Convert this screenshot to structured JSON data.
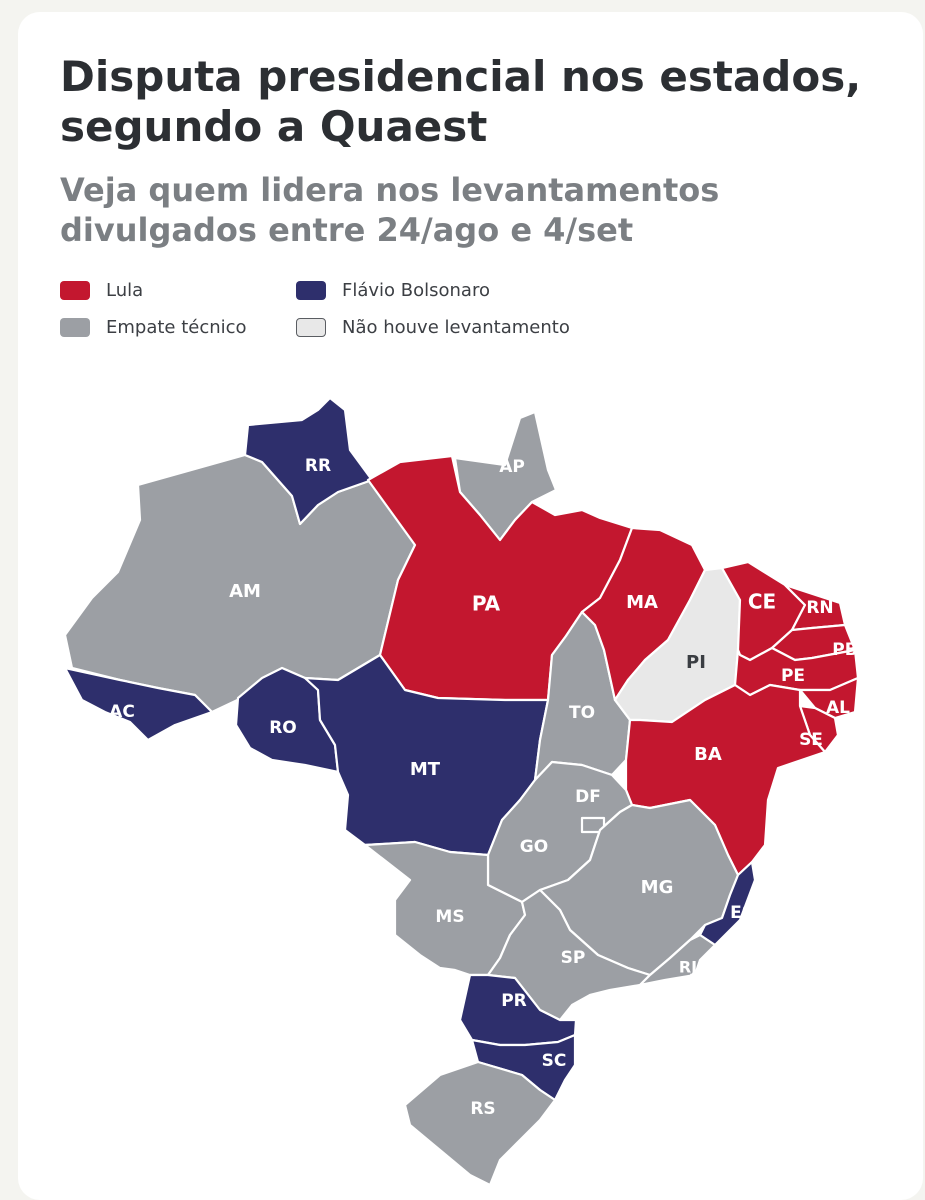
{
  "header": {
    "title": "Disputa presidencial nos estados, segundo a Quaest",
    "subtitle": "Veja quem lidera nos levantamentos divulgados entre 24/ago e 4/set"
  },
  "legend": {
    "lula": "Lula",
    "flavio": "Flávio Bolsonaro",
    "empate": "Empate técnico",
    "sem": "Não houve levantamento"
  },
  "colors": {
    "lula": "#c3172f",
    "flavio": "#2e2f6c",
    "empate": "#9c9fa4",
    "sem": "#e8e8e8",
    "sem_border": "#5a5d62"
  },
  "states": {
    "RR": {
      "label": "RR",
      "leader": "flavio"
    },
    "AP": {
      "label": "AP",
      "leader": "empate"
    },
    "AM": {
      "label": "AM",
      "leader": "empate"
    },
    "PA": {
      "label": "PA",
      "leader": "lula"
    },
    "MA": {
      "label": "MA",
      "leader": "lula"
    },
    "CE": {
      "label": "CE",
      "leader": "lula"
    },
    "RN": {
      "label": "RN",
      "leader": "lula"
    },
    "PB": {
      "label": "PB",
      "leader": "lula"
    },
    "PE": {
      "label": "PE",
      "leader": "lula"
    },
    "AL": {
      "label": "AL",
      "leader": "lula"
    },
    "SE": {
      "label": "SE",
      "leader": "lula"
    },
    "PI": {
      "label": "PI",
      "leader": "sem"
    },
    "AC": {
      "label": "AC",
      "leader": "flavio"
    },
    "RO": {
      "label": "RO",
      "leader": "flavio"
    },
    "MT": {
      "label": "MT",
      "leader": "flavio"
    },
    "TO": {
      "label": "TO",
      "leader": "empate"
    },
    "BA": {
      "label": "BA",
      "leader": "lula"
    },
    "DF": {
      "label": "DF",
      "leader": "empate"
    },
    "GO": {
      "label": "GO",
      "leader": "empate"
    },
    "MG": {
      "label": "MG",
      "leader": "empate"
    },
    "ES": {
      "label": "ES",
      "leader": "flavio"
    },
    "MS": {
      "label": "MS",
      "leader": "empate"
    },
    "SP": {
      "label": "SP",
      "leader": "empate"
    },
    "RJ": {
      "label": "RJ",
      "leader": "empate"
    },
    "PR": {
      "label": "PR",
      "leader": "flavio"
    },
    "SC": {
      "label": "SC",
      "leader": "flavio"
    },
    "RS": {
      "label": "RS",
      "leader": "empate"
    }
  }
}
